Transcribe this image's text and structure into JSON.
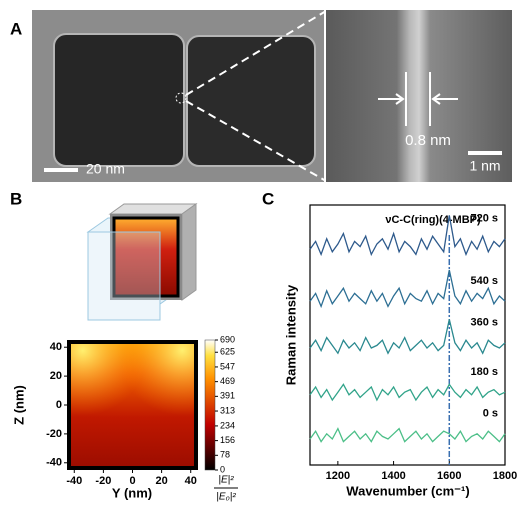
{
  "panels": {
    "a": "A",
    "b": "B",
    "c": "C"
  },
  "panel_a": {
    "scale_bar_left": "20 nm",
    "gap_label": "0.8 nm",
    "scale_bar_right": "1 nm"
  },
  "chart_data": [
    {
      "type": "heatmap",
      "xlabel": "Y (nm)",
      "ylabel": "Z (nm)",
      "xlim": [
        -45,
        45
      ],
      "xticks": [
        -40,
        -20,
        0,
        20,
        40
      ],
      "ylim": [
        -45,
        45
      ],
      "yticks": [
        -40,
        -20,
        0,
        20,
        40
      ],
      "colorbar": {
        "lim": [
          0,
          690
        ],
        "ticks": [
          0,
          78,
          156,
          234,
          313,
          391,
          469,
          547,
          625,
          690
        ],
        "label_numerator": "|E|²",
        "label_denominator": "|E₀|²"
      }
    },
    {
      "type": "line",
      "xlabel": "Wavenumber (cm⁻¹)",
      "ylabel": "Raman intensity",
      "annotation": "νC-C(ring)(4-MBP)",
      "vline": 1600,
      "xlim": [
        1100,
        1800
      ],
      "xticks": [
        1200,
        1400,
        1600,
        1800
      ],
      "ylim": [
        0,
        10
      ],
      "x": [
        1100,
        1120,
        1140,
        1160,
        1180,
        1200,
        1220,
        1240,
        1260,
        1280,
        1300,
        1320,
        1340,
        1360,
        1380,
        1400,
        1420,
        1440,
        1460,
        1480,
        1500,
        1520,
        1540,
        1560,
        1580,
        1600,
        1620,
        1640,
        1660,
        1680,
        1700,
        1720,
        1740,
        1760,
        1780,
        1800
      ],
      "series": [
        {
          "name": "720 s",
          "color": "#2e5a8c",
          "values": [
            8.3,
            8.6,
            8.1,
            8.7,
            8.2,
            8.5,
            8.9,
            8.2,
            8.6,
            8.4,
            8.8,
            8.1,
            8.5,
            8.7,
            8.3,
            8.9,
            8.2,
            8.6,
            8.4,
            8.1,
            8.7,
            8.3,
            8.8,
            8.5,
            8.2,
            9.6,
            8.4,
            8.7,
            8.1,
            8.6,
            8.3,
            8.8,
            8.2,
            8.6,
            8.4,
            8.7
          ]
        },
        {
          "name": "540 s",
          "color": "#2d6f94",
          "values": [
            6.3,
            6.6,
            6.1,
            6.7,
            6.2,
            6.5,
            6.8,
            6.3,
            6.6,
            6.4,
            6.2,
            6.7,
            6.3,
            6.6,
            6.1,
            6.5,
            6.8,
            6.2,
            6.6,
            6.4,
            6.3,
            6.7,
            6.2,
            6.6,
            6.4,
            7.5,
            6.5,
            6.2,
            6.7,
            6.3,
            6.6,
            6.4,
            6.8,
            6.2,
            6.5,
            6.3
          ]
        },
        {
          "name": "360 s",
          "color": "#2a898f",
          "values": [
            4.5,
            4.8,
            4.4,
            4.9,
            4.6,
            4.3,
            4.8,
            4.5,
            4.7,
            4.4,
            4.9,
            4.5,
            4.6,
            4.8,
            4.3,
            4.7,
            4.5,
            4.9,
            4.4,
            4.6,
            4.8,
            4.5,
            4.7,
            4.4,
            4.6,
            5.6,
            4.7,
            4.4,
            4.8,
            4.5,
            4.7,
            4.3,
            4.8,
            4.6,
            4.5,
            4.7
          ]
        },
        {
          "name": "180 s",
          "color": "#32a48a",
          "values": [
            2.7,
            3.0,
            2.6,
            2.9,
            2.5,
            2.8,
            3.1,
            2.7,
            2.9,
            2.6,
            2.8,
            3.0,
            2.5,
            2.9,
            2.7,
            3.0,
            2.6,
            2.8,
            2.9,
            2.5,
            2.8,
            3.0,
            2.6,
            2.9,
            2.7,
            3.1,
            2.8,
            2.6,
            2.9,
            2.7,
            3.0,
            2.6,
            2.8,
            2.9,
            2.7,
            2.8
          ]
        },
        {
          "name": "0 s",
          "color": "#4cbf88",
          "values": [
            1.0,
            1.3,
            0.9,
            1.2,
            1.0,
            1.4,
            0.9,
            1.1,
            1.3,
            1.0,
            1.2,
            0.9,
            1.3,
            1.1,
            1.0,
            1.2,
            1.4,
            0.9,
            1.1,
            1.3,
            1.0,
            1.2,
            0.9,
            1.1,
            1.3,
            1.2,
            1.0,
            1.3,
            0.9,
            1.1,
            1.2,
            1.0,
            1.3,
            1.1,
            0.9,
            1.2
          ]
        }
      ]
    }
  ]
}
